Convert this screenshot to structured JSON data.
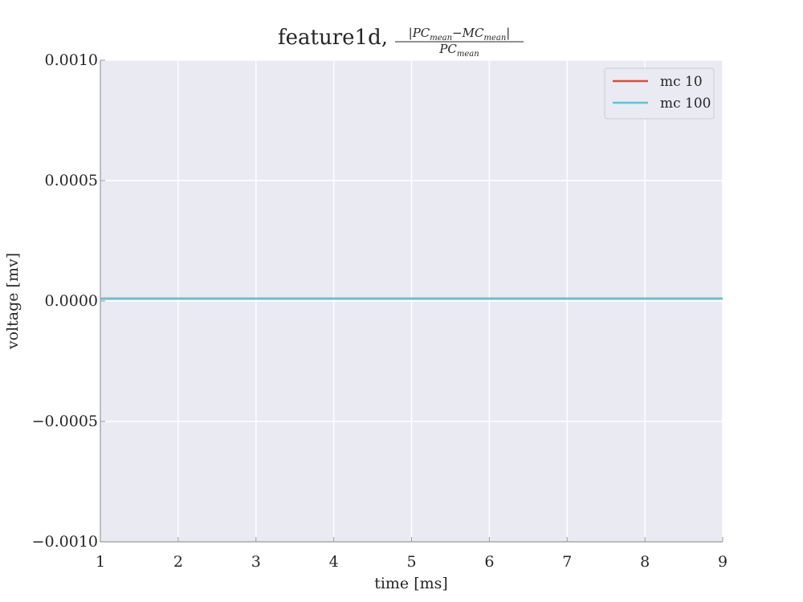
{
  "chart_data": {
    "type": "line",
    "title": {
      "prefix": "feature1d,",
      "numerator": [
        "|PC",
        "mean",
        "−MC",
        "mean",
        "|"
      ],
      "denominator": [
        "PC",
        "mean"
      ]
    },
    "xlabel": "time [ms]",
    "ylabel": "voltage [mv]",
    "xlim": [
      1,
      9
    ],
    "ylim": [
      -0.001,
      0.001
    ],
    "x_ticks": [
      1,
      2,
      3,
      4,
      5,
      6,
      7,
      8,
      9
    ],
    "x_tick_labels": [
      "1",
      "2",
      "3",
      "4",
      "5",
      "6",
      "7",
      "8",
      "9"
    ],
    "y_ticks": [
      -0.001,
      -0.0005,
      0.0,
      0.0005,
      0.001
    ],
    "y_tick_labels": [
      "−0.0010",
      "−0.0005",
      "0.0000",
      "0.0005",
      "0.0010"
    ],
    "grid": true,
    "legend_position": "top-right",
    "series": [
      {
        "name": "mc 10",
        "color": "#e24a33",
        "x": [
          1,
          9
        ],
        "y": [
          1e-05,
          1e-05
        ]
      },
      {
        "name": "mc 100",
        "color": "#56c8d8",
        "x": [
          1,
          9
        ],
        "y": [
          1e-05,
          1e-05
        ]
      }
    ],
    "colors": {
      "plot_background": "#eaeaf2",
      "grid": "#ffffff",
      "axis": "#999999",
      "text": "#262626"
    }
  }
}
